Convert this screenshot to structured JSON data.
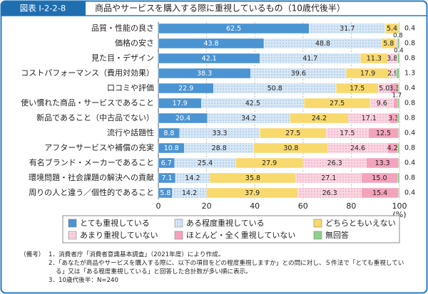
{
  "figure_label": "図表 I-2-2-8",
  "chart_data": {
    "type": "stacked-bar-horizontal",
    "title": "商品やサービスを購入する際に重視しているもの（10歳代後半）",
    "categories": [
      "品質・性能の良さ",
      "価格の安さ",
      "見た目・デザイン",
      "コストパフォーマンス（費用対効果）",
      "口コミや評価",
      "使い慣れた商品・サービスであること",
      "新品であること（中古品でない）",
      "流行や話題性",
      "アフターサービスや補償の充実",
      "有名ブランド・メーカーであること",
      "環境問題・社会課題の解決への貢献",
      "周りの人と違う／個性的であること"
    ],
    "series": [
      {
        "name": "とても重視している",
        "color": "#4b94d3",
        "values": [
          62.5,
          43.8,
          42.1,
          38.3,
          22.9,
          17.9,
          20.4,
          8.8,
          10.8,
          6.7,
          7.1,
          5.8
        ]
      },
      {
        "name": "ある程度重視している",
        "color": "#d7e7f6",
        "dotted": true,
        "values": [
          31.7,
          48.8,
          41.7,
          39.6,
          50.8,
          42.5,
          34.2,
          33.3,
          28.8,
          25.4,
          14.2,
          14.2
        ]
      },
      {
        "name": "どちらともいえない",
        "color": "#f8d96e",
        "values": [
          5.4,
          5.8,
          11.3,
          17.9,
          17.5,
          27.5,
          24.2,
          27.5,
          30.8,
          27.9,
          35.8,
          37.9
        ]
      },
      {
        "name": "あまり重視していない",
        "color": "#fad6e2",
        "dotted": true,
        "values": [
          null,
          0.8,
          3.8,
          2.9,
          5.0,
          9.6,
          17.1,
          17.5,
          24.6,
          26.3,
          27.1,
          26.3
        ],
        "value_labels": [
          null,
          "0.8",
          "3.8",
          "2.9",
          "5.0",
          "9.6",
          "17.1",
          "17.5",
          "24.6",
          "26.3",
          "27.1",
          "26.3"
        ]
      },
      {
        "name": "ほとんど・全く重視していない",
        "color": "#f3a3bc",
        "values": [
          null,
          null,
          0.4,
          null,
          3.3,
          1.7,
          3.3,
          12.5,
          4.2,
          13.3,
          15.0,
          15.4
        ],
        "value_labels": [
          null,
          null,
          "0.4",
          null,
          "3.3",
          "1.7",
          "3.3",
          "12.5",
          "4.2",
          "13.3",
          "15.0",
          "15.4"
        ]
      },
      {
        "name": "無回答",
        "color": "#8fd08c",
        "values": [
          0.4,
          0.8,
          0.8,
          1.3,
          0.4,
          0.8,
          0.8,
          0.4,
          0.8,
          0.4,
          0.8,
          0.4
        ]
      }
    ],
    "xlim": [
      0,
      100
    ],
    "xticks": [
      0,
      20,
      40,
      60,
      80,
      100
    ],
    "x_unit": "(%)",
    "grid": true
  },
  "notes_label": "（備考）",
  "notes": [
    "1．消費者庁「消費者意識基本調査」（2021年度）により作成。",
    "2．「あなたが商品やサービスを購入する際に、以下の項目をどの程度重視しますか」との問に対し、５件法で「とても重視している」又は「ある程度重視している」と回答した合計数が多い順に表示。",
    "3．10歳代後半：N=240"
  ]
}
